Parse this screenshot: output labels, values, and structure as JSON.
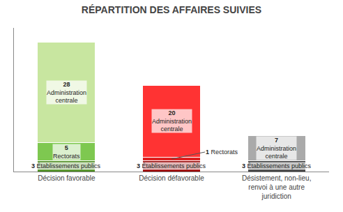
{
  "chart_data": {
    "type": "bar",
    "title": "RÉPARTITION DES AFFAIRES SUIVIES",
    "categories": [
      "Décision favorable",
      "Décision défavorable",
      "Désistement, non-lieu,\nrenvoi à une autre\njuridiction"
    ],
    "series": [
      {
        "name": "Établissements publics",
        "values": [
          3,
          3,
          3
        ],
        "colors": [
          "#4a8c1c",
          "#990000",
          "#3d3d3d"
        ]
      },
      {
        "name": "Rectorats",
        "values": [
          5,
          1,
          0
        ],
        "colors": [
          "#7ec850",
          "#dd2222",
          "#888888"
        ]
      },
      {
        "name": "Administration centrale",
        "values": [
          28,
          20,
          7
        ],
        "colors": [
          "#c8e6a0",
          "#ff3333",
          "#aaaaaa"
        ]
      }
    ],
    "stacked": true,
    "data_labels": true,
    "ylim": [
      0,
      40
    ],
    "tick_labels": "x",
    "grid": false
  }
}
